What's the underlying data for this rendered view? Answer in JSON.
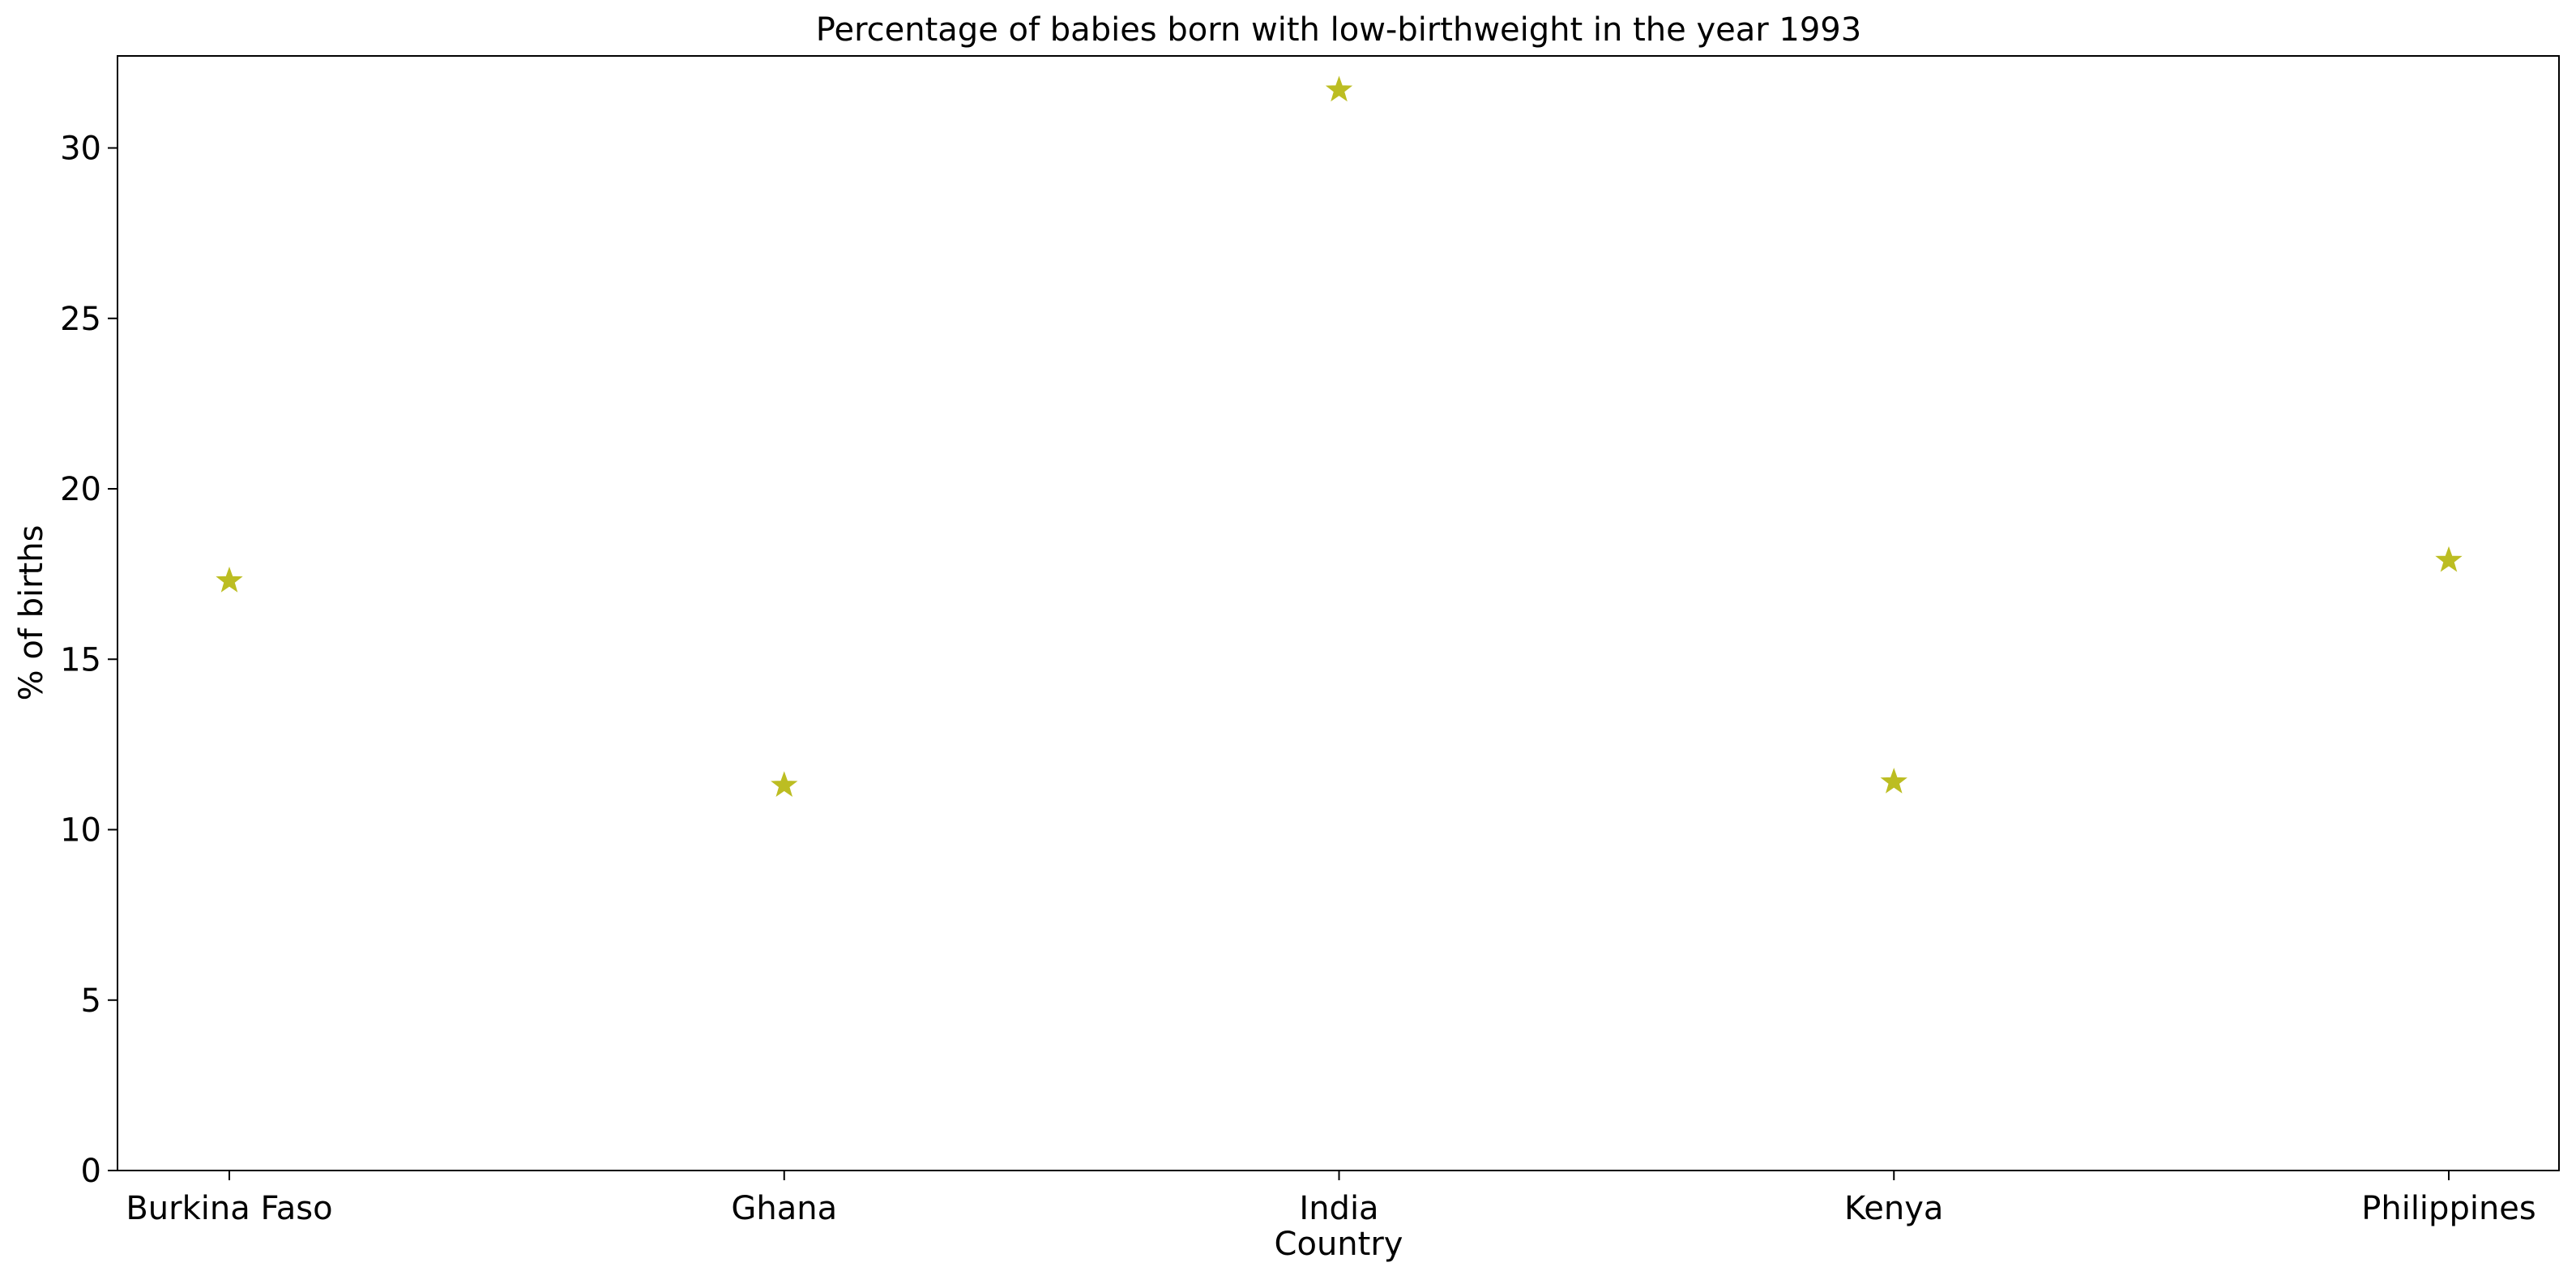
{
  "chart_data": {
    "type": "scatter",
    "title": "Percentage of babies born with low-birthweight in the year 1993",
    "xlabel": "Country",
    "ylabel": "% of births",
    "categories": [
      "Burkina Faso",
      "Ghana",
      "India",
      "Kenya",
      "Philippines"
    ],
    "series": [
      {
        "values": [
          17.3,
          11.3,
          31.7,
          11.4,
          17.9
        ],
        "marker": "star",
        "color": "#bcbd22"
      }
    ],
    "ylim": [
      0,
      32.7
    ],
    "yticks": [
      0,
      5,
      10,
      15,
      20,
      25,
      30
    ],
    "grid": false,
    "legend": "none"
  }
}
